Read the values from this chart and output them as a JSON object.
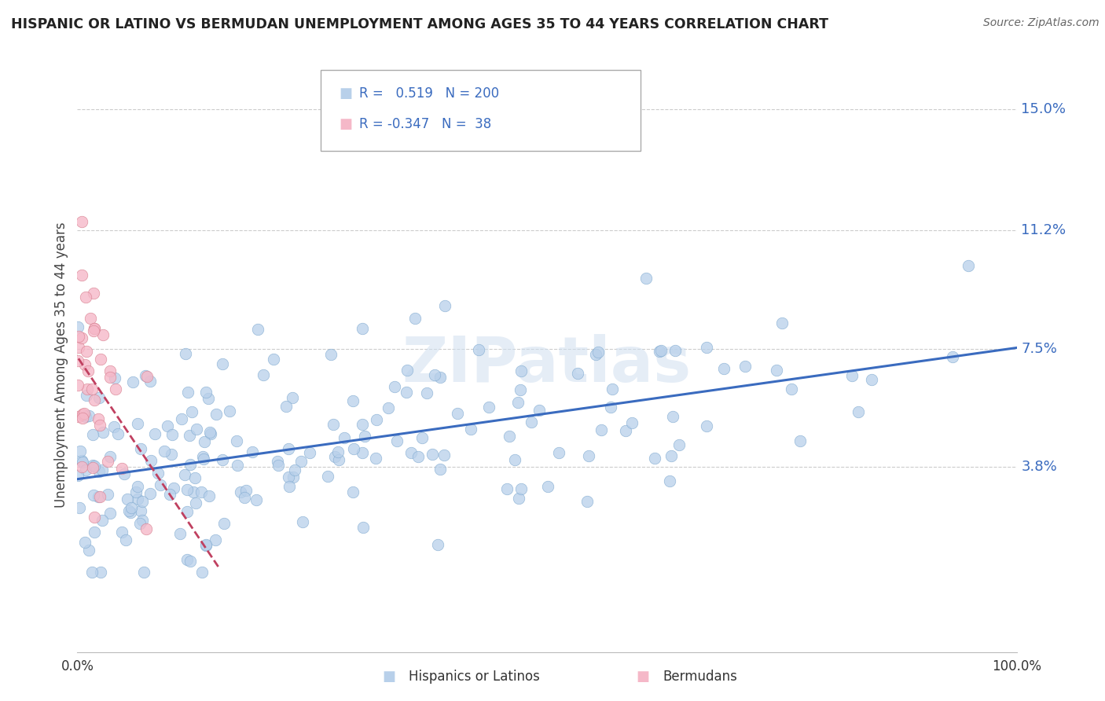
{
  "title": "HISPANIC OR LATINO VS BERMUDAN UNEMPLOYMENT AMONG AGES 35 TO 44 YEARS CORRELATION CHART",
  "source": "Source: ZipAtlas.com",
  "ylabel": "Unemployment Among Ages 35 to 44 years",
  "xlim": [
    0,
    100
  ],
  "ylim": [
    -2,
    16
  ],
  "ytick_labels": [
    "3.8%",
    "7.5%",
    "11.2%",
    "15.0%"
  ],
  "ytick_values": [
    3.8,
    7.5,
    11.2,
    15.0
  ],
  "xtick_labels": [
    "0.0%",
    "100.0%"
  ],
  "legend_entry1": {
    "color": "#b8d0ea",
    "R": 0.519,
    "N": 200,
    "label": "Hispanics or Latinos"
  },
  "legend_entry2": {
    "color": "#f5b8c8",
    "R": -0.347,
    "N": 38,
    "label": "Bermudans"
  },
  "line1_color": "#3a6bbf",
  "line2_color": "#c04060",
  "scatter1_color": "#b8d0ea",
  "scatter1_edge": "#80aad0",
  "scatter2_color": "#f5b8c8",
  "scatter2_edge": "#d88090",
  "watermark_color": "#d0dff0",
  "background_color": "#ffffff",
  "grid_color": "#cccccc"
}
